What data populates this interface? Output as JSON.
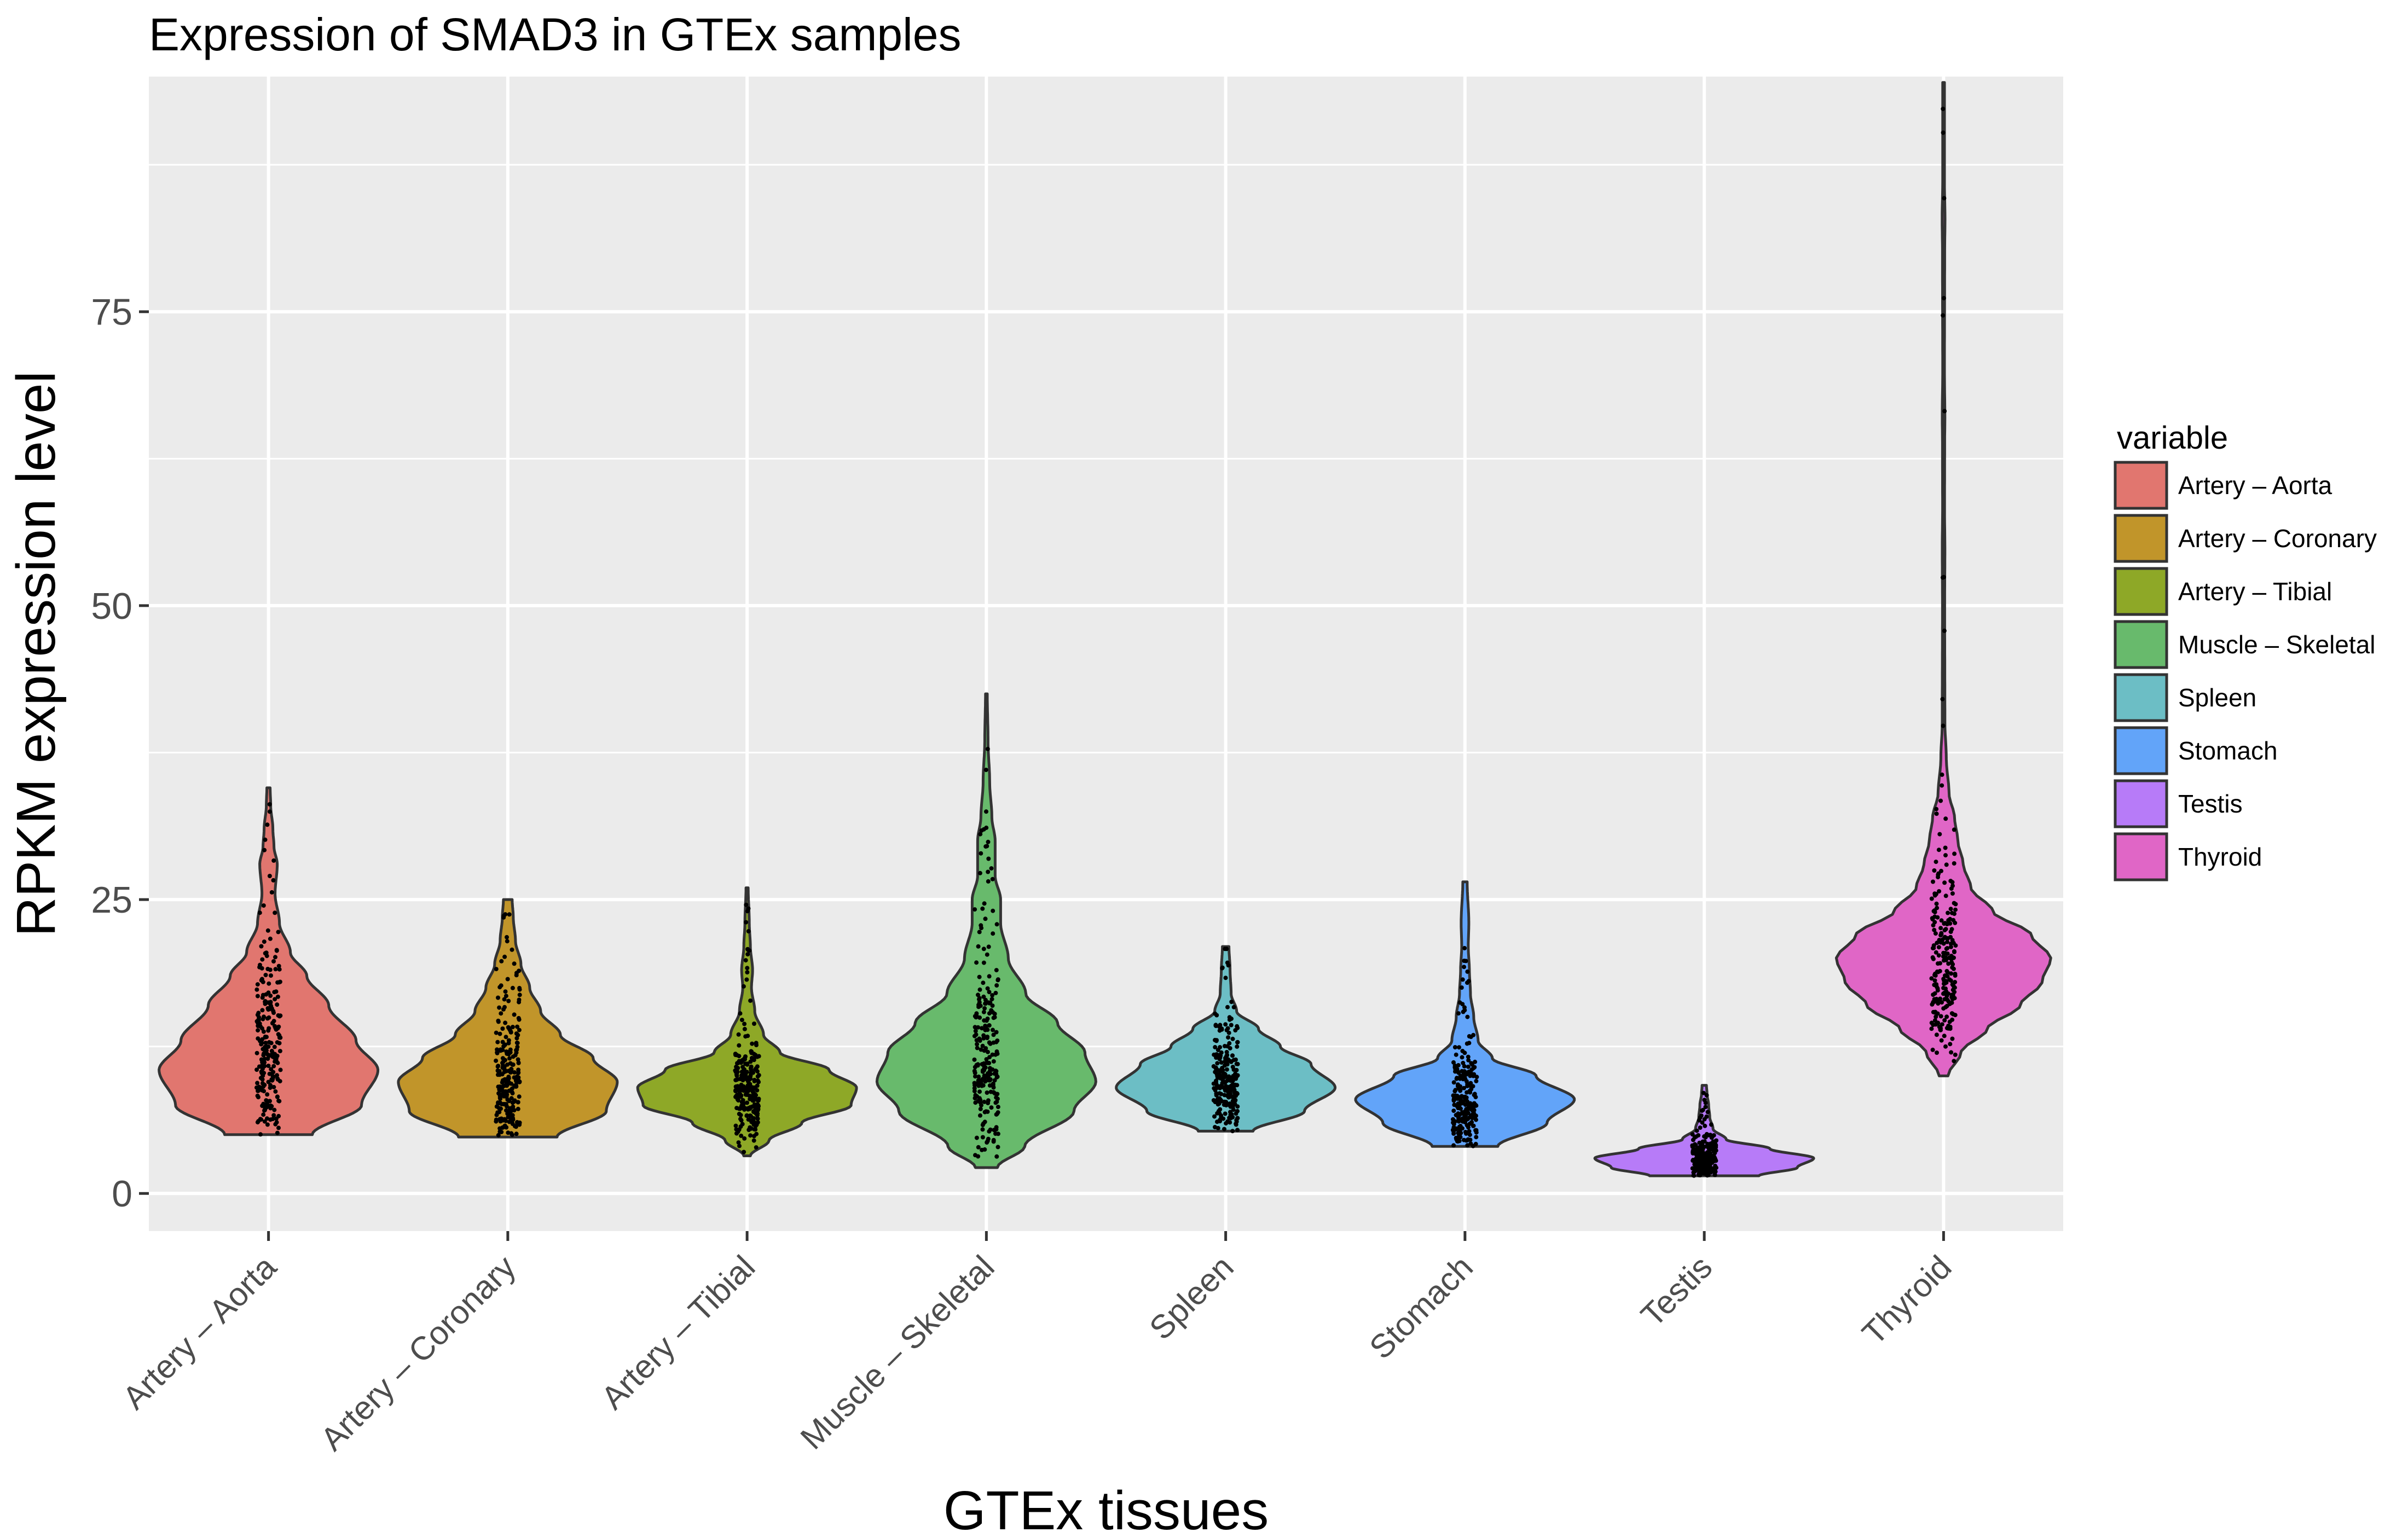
{
  "chart_data": {
    "type": "violin",
    "title": "Expression of SMAD3 in GTEx samples",
    "xlabel": "GTEx tissues",
    "ylabel": "RPKM expression level",
    "ylim": [
      -3.2,
      95
    ],
    "yticks": [
      0,
      25,
      50,
      75
    ],
    "grid": true,
    "legend": {
      "title": "variable",
      "position": "right"
    },
    "categories": [
      "Artery – Aorta",
      "Artery – Coronary",
      "Artery – Tibial",
      "Muscle – Skeletal",
      "Spleen",
      "Stomach",
      "Testis",
      "Thyroid"
    ],
    "series": [
      {
        "name": "Artery – Aorta",
        "color": "#E1766F",
        "min": 5,
        "max": 34.5,
        "median": 11.8,
        "profile": [
          [
            5,
            0.4
          ],
          [
            7.5,
            0.85
          ],
          [
            10.5,
            1.0
          ],
          [
            13,
            0.8
          ],
          [
            16,
            0.55
          ],
          [
            18.5,
            0.35
          ],
          [
            20.5,
            0.2
          ],
          [
            23,
            0.1
          ],
          [
            25.5,
            0.06
          ],
          [
            28,
            0.08
          ],
          [
            29.5,
            0.05
          ],
          [
            31,
            0.04
          ],
          [
            33,
            0.02
          ],
          [
            34.5,
            0.015
          ]
        ]
      },
      {
        "name": "Artery – Coronary",
        "color": "#C1952A",
        "min": 4.8,
        "max": 25,
        "median": 10.1,
        "profile": [
          [
            4.8,
            0.45
          ],
          [
            7,
            0.9
          ],
          [
            9.5,
            1.0
          ],
          [
            11.5,
            0.78
          ],
          [
            13.5,
            0.48
          ],
          [
            15.5,
            0.3
          ],
          [
            17.5,
            0.2
          ],
          [
            19.5,
            0.12
          ],
          [
            21.5,
            0.07
          ],
          [
            23.5,
            0.05
          ],
          [
            25,
            0.04
          ]
        ]
      },
      {
        "name": "Artery – Tibial",
        "color": "#8EA827",
        "min": 3.2,
        "max": 26,
        "median": 8.8,
        "profile": [
          [
            3.2,
            0.03
          ],
          [
            4.5,
            0.2
          ],
          [
            6,
            0.5
          ],
          [
            7.5,
            0.95
          ],
          [
            9,
            1.0
          ],
          [
            10.5,
            0.75
          ],
          [
            12,
            0.3
          ],
          [
            13.5,
            0.15
          ],
          [
            15.5,
            0.07
          ],
          [
            17.5,
            0.04
          ],
          [
            19,
            0.05
          ],
          [
            21,
            0.03
          ],
          [
            23,
            0.02
          ],
          [
            26,
            0.01
          ]
        ]
      },
      {
        "name": "Muscle – Skeletal",
        "color": "#68BA6C",
        "min": 2.2,
        "max": 42.5,
        "median": 11.6,
        "profile": [
          [
            2.2,
            0.1
          ],
          [
            4,
            0.35
          ],
          [
            7,
            0.8
          ],
          [
            9.5,
            1.0
          ],
          [
            12,
            0.9
          ],
          [
            14.5,
            0.65
          ],
          [
            17,
            0.36
          ],
          [
            20,
            0.2
          ],
          [
            23,
            0.13
          ],
          [
            25,
            0.13
          ],
          [
            27,
            0.08
          ],
          [
            30,
            0.08
          ],
          [
            32,
            0.05
          ],
          [
            35,
            0.03
          ],
          [
            38.5,
            0.015
          ],
          [
            42.5,
            0.008
          ]
        ]
      },
      {
        "name": "Spleen",
        "color": "#6CBEC5",
        "min": 5.3,
        "max": 21,
        "median": 10.1,
        "profile": [
          [
            5.3,
            0.25
          ],
          [
            7,
            0.72
          ],
          [
            9,
            1.0
          ],
          [
            11,
            0.78
          ],
          [
            12.5,
            0.5
          ],
          [
            14,
            0.3
          ],
          [
            15.5,
            0.1
          ],
          [
            17,
            0.05
          ],
          [
            19,
            0.04
          ],
          [
            21,
            0.03
          ]
        ]
      },
      {
        "name": "Stomach",
        "color": "#62A4F9",
        "min": 4,
        "max": 26.5,
        "median": 8.4,
        "profile": [
          [
            4,
            0.3
          ],
          [
            6,
            0.75
          ],
          [
            8,
            1.0
          ],
          [
            10,
            0.65
          ],
          [
            11.5,
            0.25
          ],
          [
            13,
            0.12
          ],
          [
            15,
            0.08
          ],
          [
            17,
            0.05
          ],
          [
            19,
            0.04
          ],
          [
            21,
            0.03
          ],
          [
            23,
            0.035
          ],
          [
            26.5,
            0.02
          ]
        ]
      },
      {
        "name": "Testis",
        "color": "#B77BF8",
        "min": 1.5,
        "max": 9.2,
        "median": 2.9,
        "profile": [
          [
            1.5,
            0.5
          ],
          [
            2.2,
            0.85
          ],
          [
            3,
            1.0
          ],
          [
            3.8,
            0.6
          ],
          [
            4.6,
            0.2
          ],
          [
            5.5,
            0.08
          ],
          [
            6.5,
            0.05
          ],
          [
            7.5,
            0.04
          ],
          [
            8.5,
            0.025
          ],
          [
            9.2,
            0.02
          ]
        ]
      },
      {
        "name": "Thyroid",
        "color": "#E066C6",
        "min": 10,
        "max": 94.5,
        "median": 20.6,
        "profile": [
          [
            10,
            0.04
          ],
          [
            12,
            0.16
          ],
          [
            14,
            0.4
          ],
          [
            16,
            0.7
          ],
          [
            18,
            0.9
          ],
          [
            20,
            0.98
          ],
          [
            22,
            0.8
          ],
          [
            24,
            0.45
          ],
          [
            26,
            0.25
          ],
          [
            28,
            0.18
          ],
          [
            30,
            0.13
          ],
          [
            32,
            0.1
          ],
          [
            34,
            0.05
          ],
          [
            37,
            0.025
          ],
          [
            40,
            0.012
          ],
          [
            50,
            0.01
          ],
          [
            55,
            0.012
          ],
          [
            58,
            0.009
          ],
          [
            64,
            0.01
          ],
          [
            66,
            0.012
          ],
          [
            70,
            0.008
          ],
          [
            80,
            0.01
          ],
          [
            83,
            0.013
          ],
          [
            86,
            0.008
          ],
          [
            94.5,
            0.008
          ]
        ]
      }
    ]
  }
}
